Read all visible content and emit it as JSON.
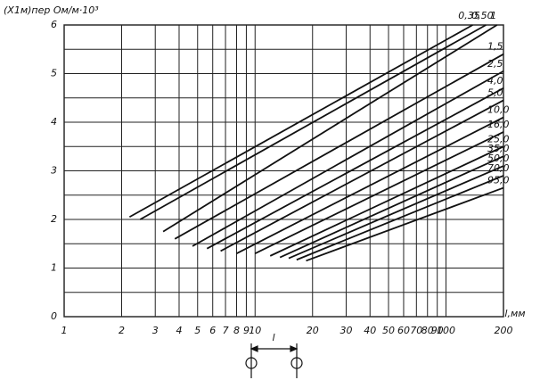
{
  "chart_data": {
    "type": "line",
    "y_label": "(X1м)пер Ом/м·10³",
    "x_label": "l,мм",
    "diagram_label": "l",
    "xlog": true,
    "grid": true,
    "color": "#111111",
    "xlim": [
      1,
      200
    ],
    "ylim": [
      0,
      6
    ],
    "xticks": [
      1,
      2,
      3,
      4,
      5,
      6,
      7,
      8,
      9,
      10,
      20,
      30,
      40,
      50,
      60,
      70,
      80,
      90,
      100,
      200
    ],
    "yticks": [
      0,
      1,
      2,
      3,
      4,
      5,
      6
    ],
    "series": [
      {
        "name": "0,35",
        "x": [
          2.2,
          138
        ],
        "values": [
          2.05,
          6.0
        ]
      },
      {
        "name": "0,50",
        "x": [
          2.5,
          162
        ],
        "values": [
          2.0,
          6.0
        ]
      },
      {
        "name": "1",
        "x": [
          3.3,
          185
        ],
        "values": [
          1.75,
          6.0
        ]
      },
      {
        "name": "1,5",
        "x": [
          3.8,
          200
        ],
        "values": [
          1.6,
          5.4
        ]
      },
      {
        "name": "2,5",
        "x": [
          4.7,
          200
        ],
        "values": [
          1.45,
          5.05
        ]
      },
      {
        "name": "4,0",
        "x": [
          5.6,
          200
        ],
        "values": [
          1.4,
          4.7
        ]
      },
      {
        "name": "5,0",
        "x": [
          6.6,
          200
        ],
        "values": [
          1.35,
          4.45
        ]
      },
      {
        "name": "10,0",
        "x": [
          8.0,
          200
        ],
        "values": [
          1.3,
          4.1
        ]
      },
      {
        "name": "16,0",
        "x": [
          10.0,
          200
        ],
        "values": [
          1.3,
          3.8
        ]
      },
      {
        "name": "25,0",
        "x": [
          12.0,
          200
        ],
        "values": [
          1.25,
          3.5
        ]
      },
      {
        "name": "35,0",
        "x": [
          13.5,
          200
        ],
        "values": [
          1.22,
          3.3
        ]
      },
      {
        "name": "50,0",
        "x": [
          15.0,
          200
        ],
        "values": [
          1.2,
          3.1
        ]
      },
      {
        "name": "70,0",
        "x": [
          16.5,
          200
        ],
        "values": [
          1.17,
          2.9
        ]
      },
      {
        "name": "95,0",
        "x": [
          18.5,
          200
        ],
        "values": [
          1.15,
          2.65
        ]
      }
    ]
  }
}
